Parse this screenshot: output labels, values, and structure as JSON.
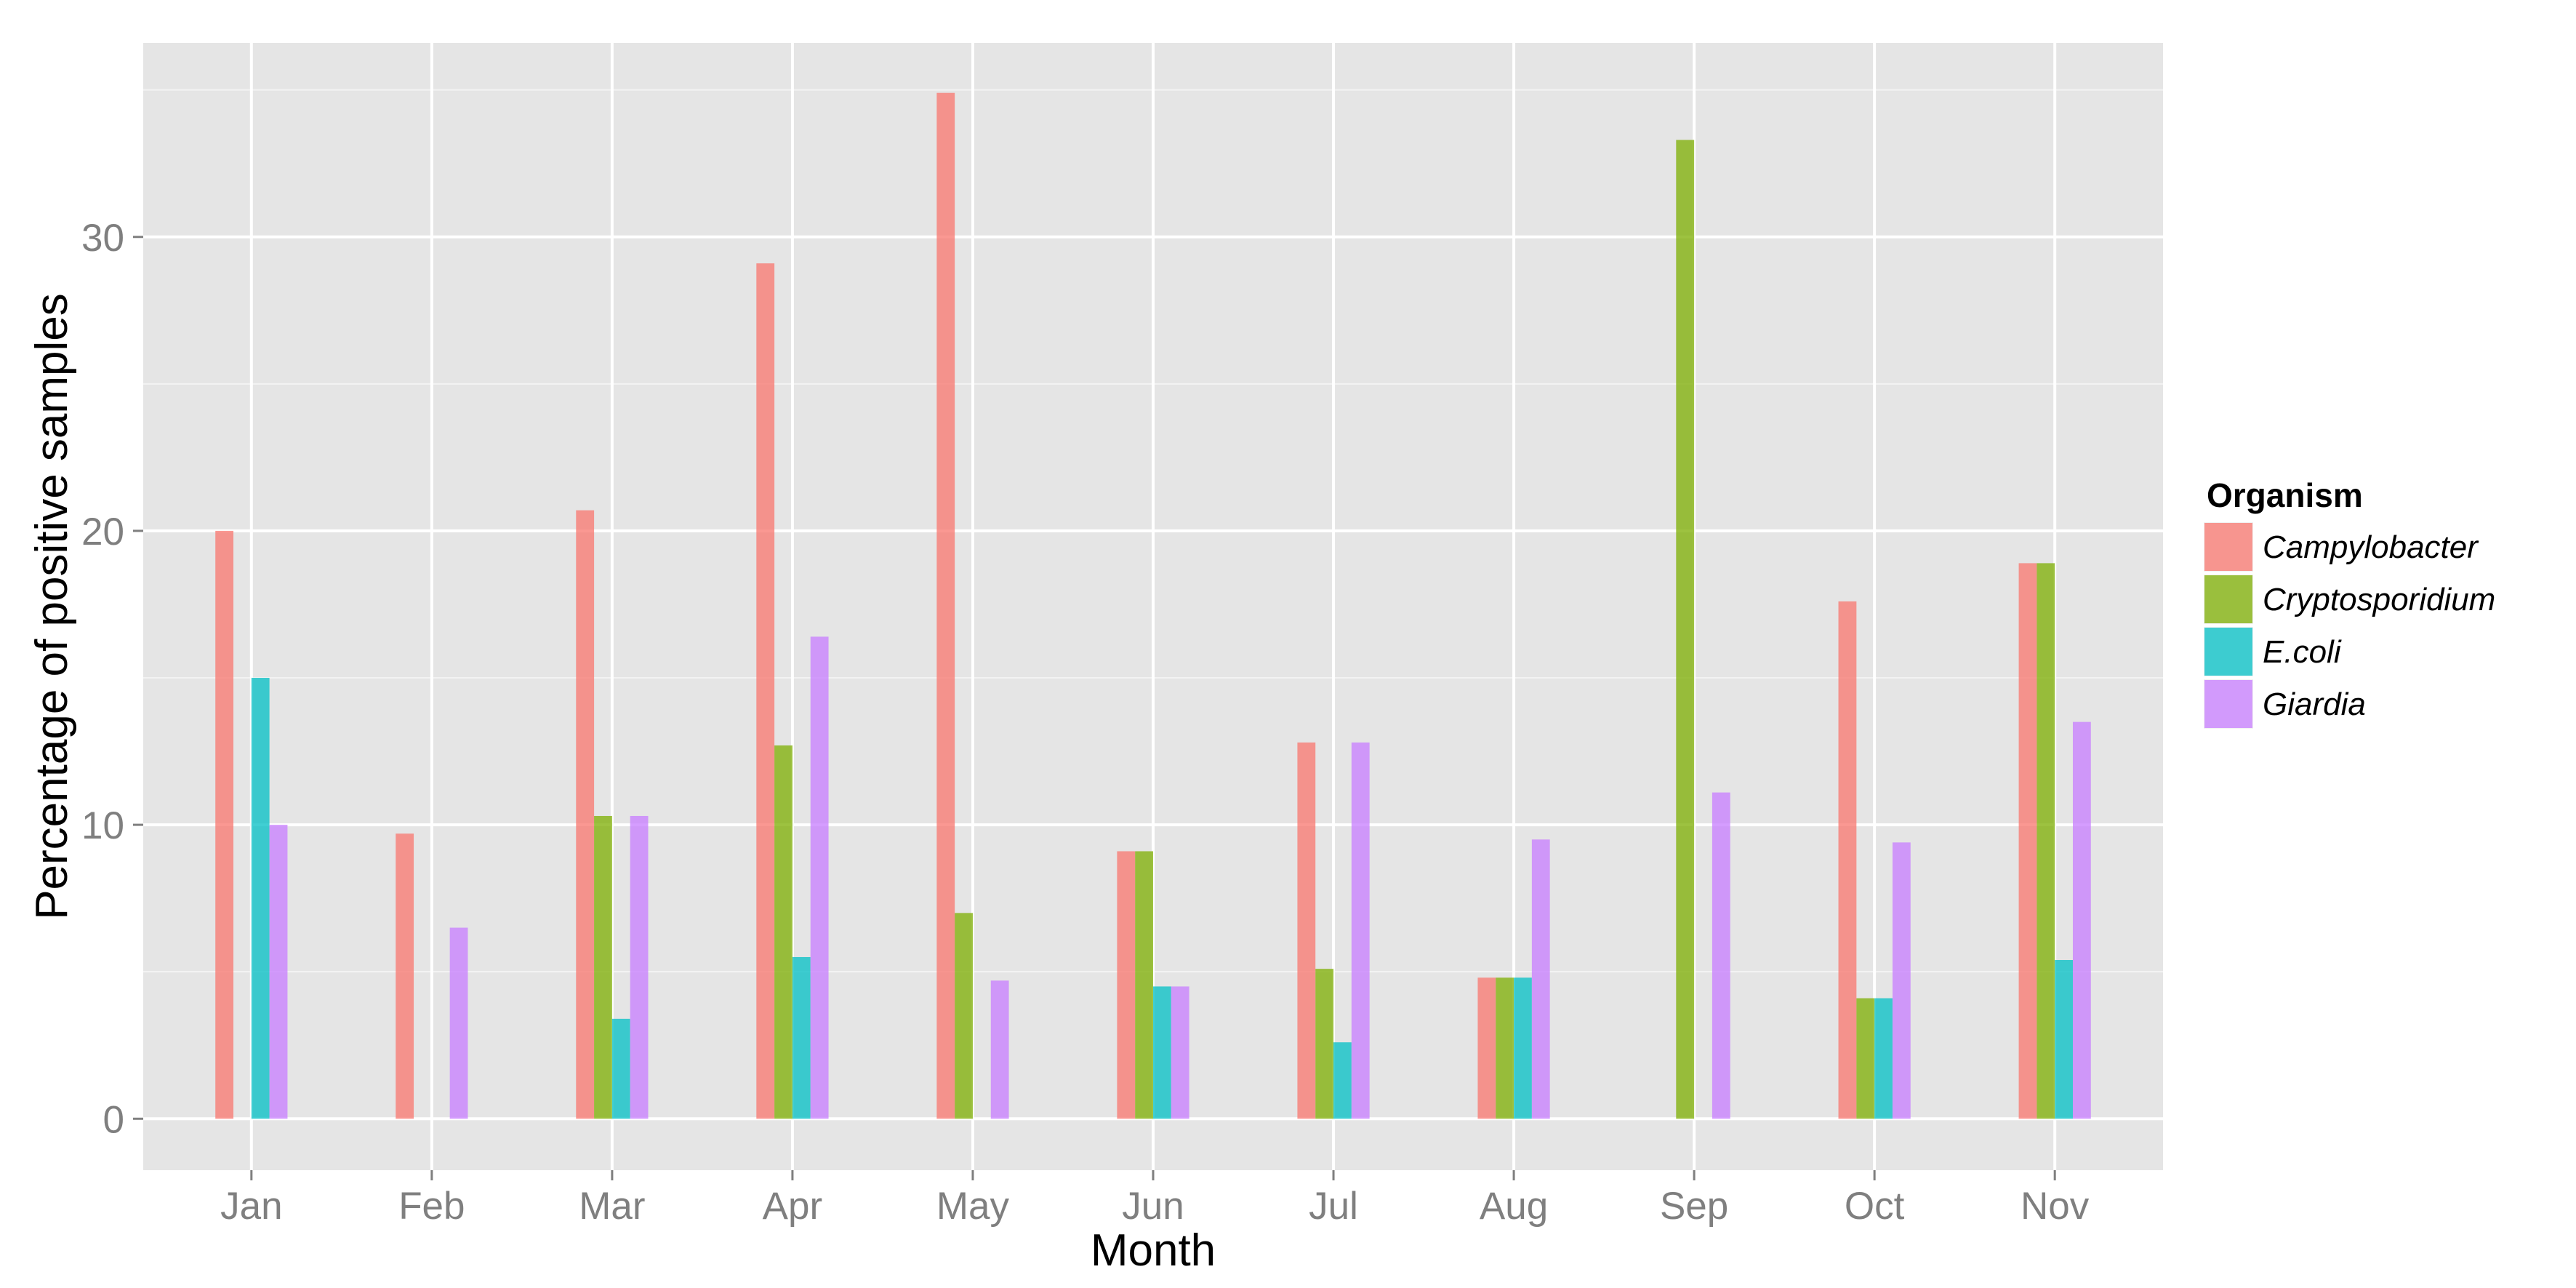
{
  "chart_data": {
    "type": "bar",
    "title": "",
    "xlabel": "Month",
    "ylabel": "Percentage of positive samples",
    "categories": [
      "Jan",
      "Feb",
      "Mar",
      "Apr",
      "May",
      "Jun",
      "Jul",
      "Aug",
      "Sep",
      "Oct",
      "Nov"
    ],
    "series": [
      {
        "name": "Campylobacter",
        "color": "#F8766D",
        "values": [
          20.0,
          9.7,
          20.7,
          29.1,
          34.9,
          9.1,
          12.8,
          4.8,
          0,
          17.6,
          18.9
        ]
      },
      {
        "name": "Cryptosporidium",
        "color": "#7CAE00",
        "values": [
          0,
          0,
          10.3,
          12.7,
          7.0,
          9.1,
          5.1,
          4.8,
          33.3,
          4.1,
          18.9
        ]
      },
      {
        "name": "E.coli",
        "color": "#00BFC4",
        "values": [
          15.0,
          0,
          3.4,
          5.5,
          0,
          4.5,
          2.6,
          4.8,
          0,
          4.1,
          5.4
        ]
      },
      {
        "name": "Giardia",
        "color": "#C77CFF",
        "values": [
          10.0,
          6.5,
          10.3,
          16.4,
          4.7,
          4.5,
          12.8,
          9.5,
          11.1,
          9.4,
          13.5
        ]
      }
    ],
    "ylim": [
      -1.75,
      36.6
    ],
    "yticks": [
      0,
      10,
      20,
      30
    ],
    "grid": true,
    "legend": {
      "title": "Organism",
      "position": "right"
    },
    "panel_color": "#E5E5E5",
    "grid_color": "#FFFFFF"
  }
}
